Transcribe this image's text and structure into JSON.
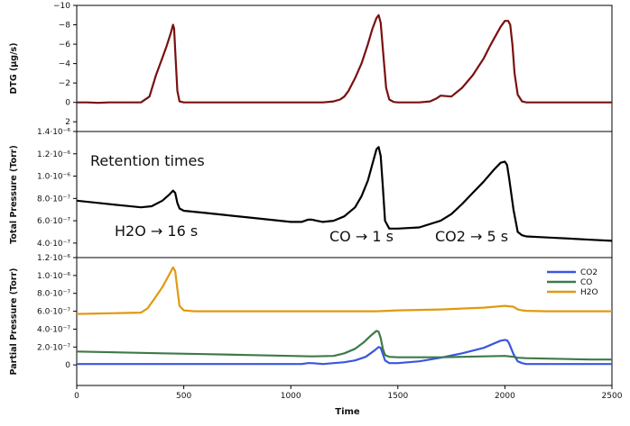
{
  "chart_data": [
    {
      "type": "line",
      "ylabel": "DTG (µg/s)",
      "ylim": [
        3,
        -10
      ],
      "y_inverted": true,
      "xlim": [
        0,
        2500
      ],
      "yticks": [
        {
          "v": -10,
          "label": "−10"
        },
        {
          "v": -8,
          "label": "−8"
        },
        {
          "v": -6,
          "label": "−6"
        },
        {
          "v": -4,
          "label": "−4"
        },
        {
          "v": -2,
          "label": "−2"
        },
        {
          "v": 0,
          "label": "0"
        },
        {
          "v": 2,
          "label": "2"
        }
      ],
      "color": "#7a1010",
      "series": [
        {
          "x": [
            0,
            50,
            100,
            150,
            200,
            250,
            300,
            340,
            370,
            400,
            420,
            440,
            450,
            455,
            462,
            470,
            480,
            500,
            600,
            700,
            800,
            900,
            1000,
            1100,
            1150,
            1200,
            1230,
            1250,
            1270,
            1300,
            1330,
            1360,
            1380,
            1400,
            1410,
            1420,
            1430,
            1445,
            1460,
            1480,
            1500,
            1600,
            1650,
            1680,
            1700,
            1750,
            1800,
            1850,
            1900,
            1930,
            1960,
            1980,
            2000,
            2015,
            2025,
            2035,
            2045,
            2060,
            2080,
            2100,
            2200,
            2300,
            2400,
            2500
          ],
          "y": [
            0,
            0,
            0.05,
            0,
            0,
            0,
            0,
            -0.6,
            -2.8,
            -4.6,
            -5.8,
            -7.2,
            -8.0,
            -7.6,
            -4.5,
            -1.2,
            -0.1,
            0,
            0,
            0,
            0,
            0,
            0,
            0,
            0,
            -0.1,
            -0.3,
            -0.6,
            -1.2,
            -2.5,
            -4.0,
            -6.0,
            -7.5,
            -8.7,
            -9.0,
            -8.2,
            -5.5,
            -1.5,
            -0.3,
            -0.05,
            0,
            0,
            -0.1,
            -0.4,
            -0.7,
            -0.6,
            -1.5,
            -2.8,
            -4.5,
            -5.8,
            -7.0,
            -7.8,
            -8.4,
            -8.4,
            -8.0,
            -6.0,
            -3.0,
            -0.8,
            -0.1,
            0,
            0,
            0,
            0,
            0
          ]
        }
      ]
    },
    {
      "type": "line",
      "ylabel": "Total Pressure  (Torr)",
      "ylim": [
        2.7e-07,
        1.4e-06
      ],
      "xlim": [
        0,
        2500
      ],
      "yticks": [
        {
          "v": 4e-07,
          "label": "4.0·10⁻⁷"
        },
        {
          "v": 6e-07,
          "label": "6.0·10⁻⁷"
        },
        {
          "v": 8e-07,
          "label": "8.0·10⁻⁷"
        },
        {
          "v": 1e-06,
          "label": "1.0·10⁻⁶"
        },
        {
          "v": 1.2e-06,
          "label": "1.2·10⁻⁶"
        },
        {
          "v": 1.4e-06,
          "label": "1.4·10⁻⁶"
        }
      ],
      "color": "#000000",
      "series": [
        {
          "x": [
            0,
            100,
            200,
            300,
            350,
            400,
            430,
            450,
            460,
            470,
            480,
            500,
            600,
            700,
            800,
            900,
            1000,
            1050,
            1080,
            1100,
            1120,
            1150,
            1200,
            1250,
            1300,
            1330,
            1360,
            1380,
            1400,
            1410,
            1420,
            1430,
            1440,
            1460,
            1500,
            1600,
            1700,
            1750,
            1800,
            1850,
            1900,
            1950,
            1980,
            2000,
            2010,
            2020,
            2040,
            2060,
            2080,
            2100,
            2200,
            2300,
            2400,
            2500
          ],
          "y": [
            7.8e-07,
            7.6e-07,
            7.4e-07,
            7.2e-07,
            7.3e-07,
            7.8e-07,
            8.3e-07,
            8.7e-07,
            8.5e-07,
            7.6e-07,
            7.1e-07,
            6.9e-07,
            6.7e-07,
            6.5e-07,
            6.3e-07,
            6.1e-07,
            5.9e-07,
            5.9e-07,
            6.1e-07,
            6.1e-07,
            6e-07,
            5.9e-07,
            6e-07,
            6.4e-07,
            7.2e-07,
            8.2e-07,
            9.6e-07,
            1.1e-06,
            1.24e-06,
            1.26e-06,
            1.18e-06,
            9e-07,
            6e-07,
            5.3e-07,
            5.3e-07,
            5.4e-07,
            6e-07,
            6.6e-07,
            7.5e-07,
            8.5e-07,
            9.5e-07,
            1.06e-06,
            1.12e-06,
            1.13e-06,
            1.1e-06,
            9.8e-07,
            7e-07,
            5e-07,
            4.7e-07,
            4.6e-07,
            4.5e-07,
            4.4e-07,
            4.3e-07,
            4.2e-07
          ]
        }
      ],
      "annotations": [
        "Retention times",
        "H2O → 16 s",
        "CO → 1 s",
        "CO2 → 5 s"
      ]
    },
    {
      "type": "line",
      "ylabel": "Partial Pressure (Torr)",
      "xlabel": "Time",
      "ylim": [
        -2.3e-07,
        1.2e-06
      ],
      "xlim": [
        0,
        2500
      ],
      "xticks": [
        {
          "v": 0,
          "label": "0"
        },
        {
          "v": 500,
          "label": "500"
        },
        {
          "v": 1000,
          "label": "1000"
        },
        {
          "v": 1500,
          "label": "1500"
        },
        {
          "v": 2000,
          "label": "2000"
        },
        {
          "v": 2500,
          "label": "2500"
        }
      ],
      "yticks": [
        {
          "v": 0,
          "label": "0"
        },
        {
          "v": 2e-07,
          "label": "2.0·10⁻⁷"
        },
        {
          "v": 4e-07,
          "label": "4.0·10⁻⁷"
        },
        {
          "v": 6e-07,
          "label": "6.0·10⁻⁷"
        },
        {
          "v": 8e-07,
          "label": "8.0·10⁻⁷"
        },
        {
          "v": 1e-06,
          "label": "1.0·10⁻⁶"
        },
        {
          "v": 1.2e-06,
          "label": "1.2·10⁻⁶"
        }
      ],
      "legend_position": "top-right",
      "series": [
        {
          "name": "CO2",
          "color": "#3a56e0",
          "x": [
            0,
            200,
            400,
            600,
            800,
            1000,
            1050,
            1080,
            1100,
            1150,
            1200,
            1250,
            1300,
            1350,
            1390,
            1410,
            1420,
            1430,
            1440,
            1460,
            1500,
            1600,
            1700,
            1800,
            1900,
            1950,
            1980,
            2000,
            2010,
            2020,
            2040,
            2060,
            2080,
            2100,
            2200,
            2300,
            2400,
            2500
          ],
          "y": [
            1e-08,
            1e-08,
            1e-08,
            1e-08,
            1e-08,
            1e-08,
            1e-08,
            2e-08,
            2e-08,
            1e-08,
            2e-08,
            3e-08,
            5e-08,
            9e-08,
            1.6e-07,
            2e-07,
            1.9e-07,
            1.2e-07,
            5e-08,
            2e-08,
            2e-08,
            4e-08,
            8e-08,
            1.3e-07,
            1.9e-07,
            2.4e-07,
            2.7e-07,
            2.8e-07,
            2.75e-07,
            2.4e-07,
            1.2e-07,
            4e-08,
            2e-08,
            1e-08,
            1e-08,
            1e-08,
            1e-08,
            1e-08
          ]
        },
        {
          "name": "CO",
          "color": "#3e7a4a",
          "x": [
            0,
            200,
            400,
            600,
            800,
            1000,
            1100,
            1200,
            1250,
            1300,
            1340,
            1370,
            1390,
            1400,
            1410,
            1420,
            1430,
            1440,
            1460,
            1500,
            1600,
            1700,
            1800,
            1900,
            2000,
            2040,
            2060,
            2100,
            2200,
            2300,
            2400,
            2500
          ],
          "y": [
            1.5e-07,
            1.4e-07,
            1.3e-07,
            1.2e-07,
            1.1e-07,
            1e-07,
            9.5e-08,
            1e-07,
            1.3e-07,
            1.8e-07,
            2.5e-07,
            3.2e-07,
            3.6e-07,
            3.8e-07,
            3.7e-07,
            3e-07,
            1.8e-07,
            1.1e-07,
            9e-08,
            8.5e-08,
            8.5e-08,
            8.5e-08,
            9e-08,
            9.5e-08,
            1e-07,
            9e-08,
            8e-08,
            7.5e-08,
            7e-08,
            6.5e-08,
            6e-08,
            6e-08
          ]
        },
        {
          "name": "H2O",
          "color": "#e09a10",
          "x": [
            0,
            100,
            200,
            300,
            330,
            360,
            400,
            430,
            450,
            460,
            470,
            480,
            500,
            550,
            600,
            800,
            1000,
            1200,
            1400,
            1500,
            1700,
            1900,
            2000,
            2040,
            2060,
            2080,
            2100,
            2200,
            2300,
            2400,
            2500
          ],
          "y": [
            5.7e-07,
            5.75e-07,
            5.8e-07,
            5.85e-07,
            6.3e-07,
            7.3e-07,
            8.7e-07,
            1e-06,
            1.09e-06,
            1.05e-06,
            8.5e-07,
            6.6e-07,
            6.1e-07,
            6e-07,
            6e-07,
            6e-07,
            6e-07,
            6e-07,
            6e-07,
            6.1e-07,
            6.2e-07,
            6.4e-07,
            6.6e-07,
            6.5e-07,
            6.2e-07,
            6.1e-07,
            6.05e-07,
            6e-07,
            6e-07,
            6e-07,
            6e-07
          ]
        }
      ]
    }
  ]
}
